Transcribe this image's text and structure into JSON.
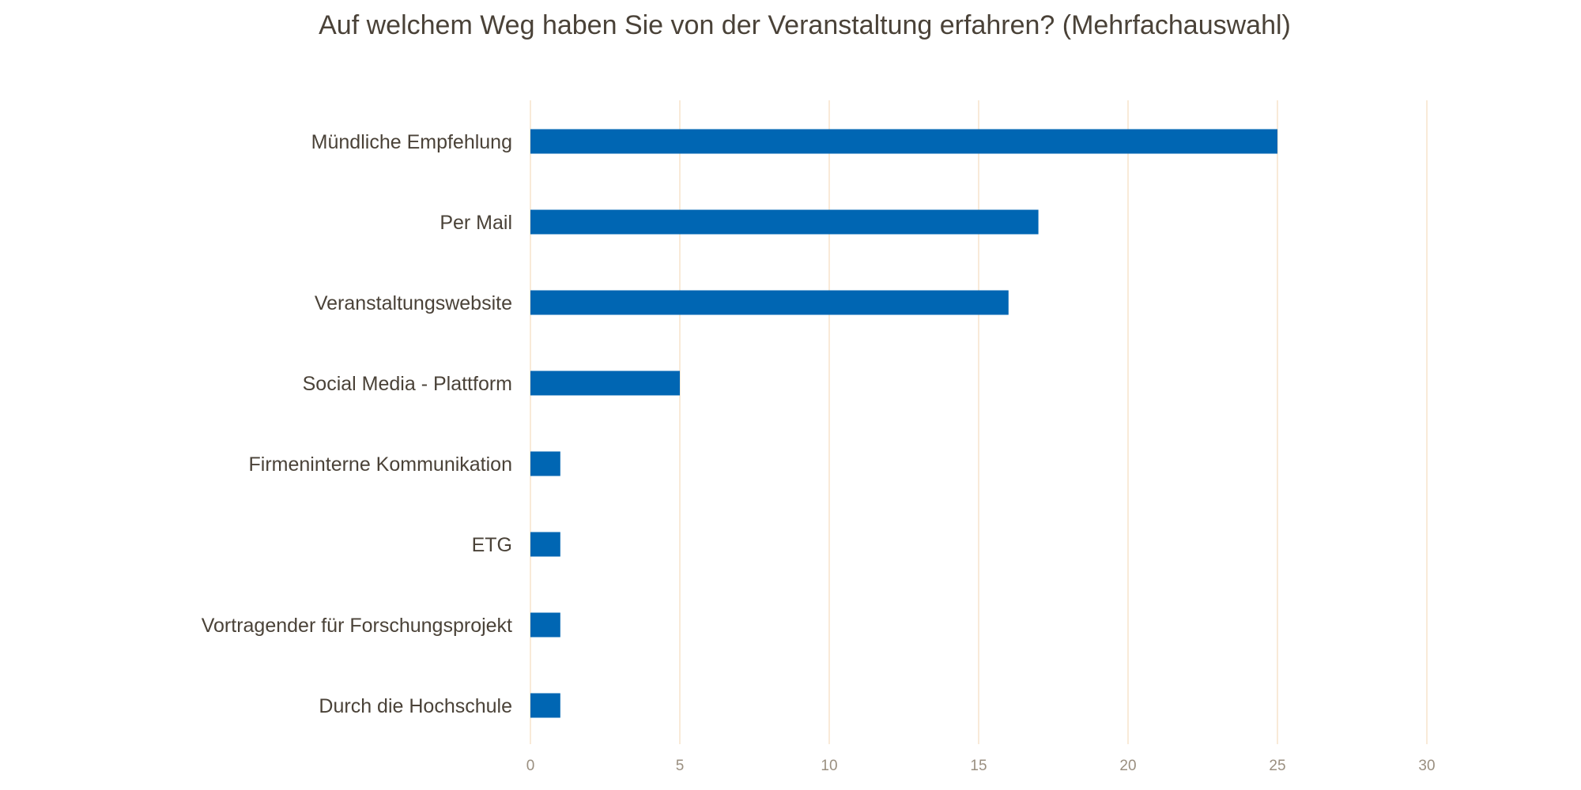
{
  "chart_data": {
    "type": "bar",
    "orientation": "horizontal",
    "title": "Auf welchem Weg haben Sie von der Veranstaltung erfahren? (Mehrfachauswahl)",
    "xlabel": "",
    "ylabel": "",
    "categories": [
      "Mündliche Empfehlung",
      "Per Mail",
      "Veranstaltungswebsite",
      "Social Media - Plattform",
      "Firmeninterne Kommunikation",
      "ETG",
      "Vortragender für Forschungsprojekt",
      "Durch die Hochschule"
    ],
    "values": [
      25,
      17,
      16,
      5,
      1,
      1,
      1,
      1
    ],
    "xlim": [
      0,
      30
    ],
    "x_ticks": [
      0,
      5,
      10,
      15,
      20,
      25,
      30
    ],
    "grid": "vertical",
    "legend": "none",
    "colors": {
      "bar": "#0066b3",
      "grid": "#f7e3cb",
      "text": "#4a4238",
      "tick_text": "#9a8f80"
    }
  }
}
